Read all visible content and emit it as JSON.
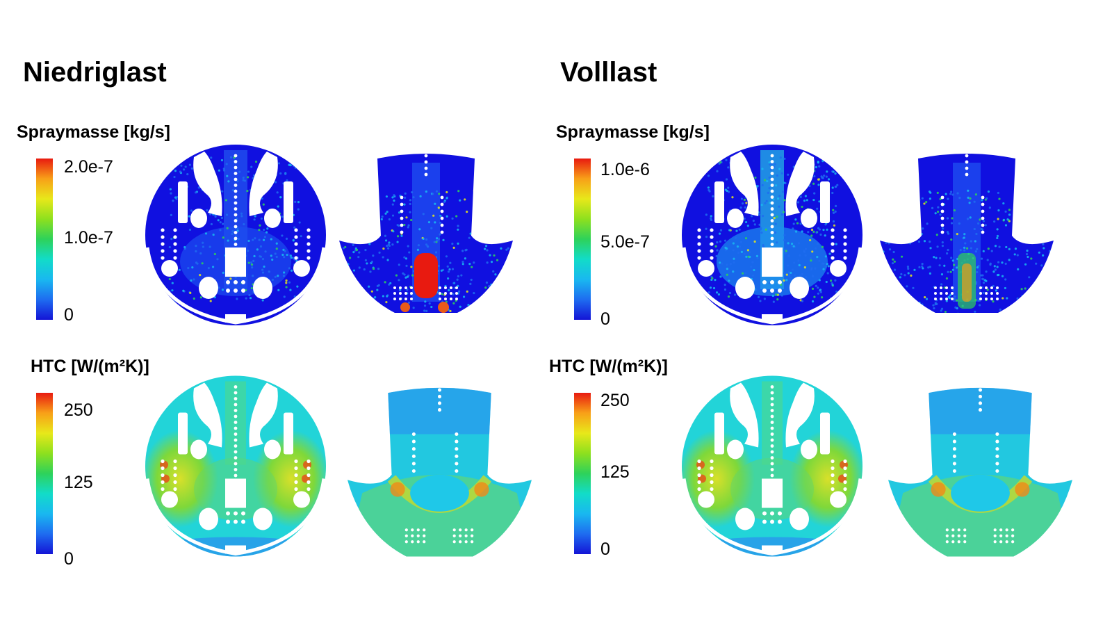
{
  "columns": [
    {
      "title": "Niedriglast",
      "spray": {
        "label": "Spraymasse [kg/s]",
        "ticks": [
          "2.0e-7",
          "1.0e-7",
          "0"
        ]
      },
      "htc": {
        "label": "HTC [W/(m²K)]",
        "ticks": [
          "250",
          "125",
          "0"
        ]
      }
    },
    {
      "title": "Volllast",
      "spray": {
        "label": "Spraymasse [kg/s]",
        "ticks": [
          "1.0e-6",
          "5.0e-7",
          "0"
        ]
      },
      "htc": {
        "label": "HTC [W/(m²K)]",
        "ticks": [
          "250",
          "125",
          "0"
        ]
      }
    }
  ],
  "colorscale": [
    "#1414d6",
    "#1e6cf0",
    "#19b8f0",
    "#12dcc8",
    "#2ed25a",
    "#8ee01e",
    "#e8e81a",
    "#f8a018",
    "#e81a10"
  ]
}
